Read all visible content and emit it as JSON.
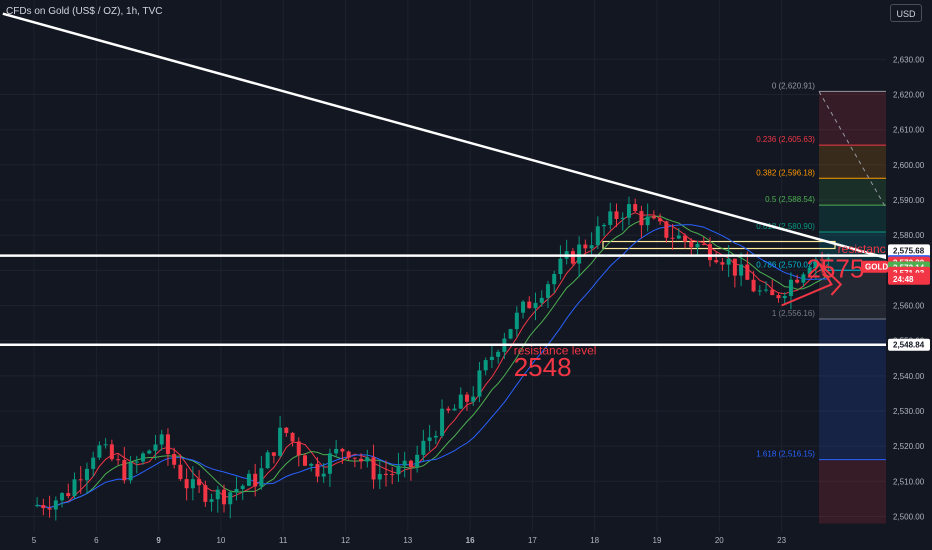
{
  "header": {
    "symbol_title": "CFDs on Gold (US$ / OZ), 1h, TVC",
    "currency_button": "USD"
  },
  "chart_data": {
    "type": "candlestick",
    "instrument": "CFDs on Gold (US$ / OZ)",
    "timeframe": "1h",
    "source": "TVC",
    "ylim": [
      2495,
      2640
    ],
    "y_ticks": [
      2500,
      2510,
      2520,
      2530,
      2540,
      2550,
      2560,
      2570,
      2580,
      2590,
      2600,
      2610,
      2620,
      2630
    ],
    "x_ticks": [
      "5",
      "6",
      "9",
      "10",
      "11",
      "12",
      "13",
      "16",
      "17",
      "18",
      "19",
      "20",
      "23"
    ],
    "x_ticks_bold": [
      "9",
      "16"
    ],
    "price_path": [
      [
        0.0,
        2503
      ],
      [
        0.5,
        2506
      ],
      [
        1.0,
        2520
      ],
      [
        1.5,
        2512
      ],
      [
        2.0,
        2522
      ],
      [
        2.5,
        2508
      ],
      [
        3.0,
        2506
      ],
      [
        3.6,
        2511
      ],
      [
        4.0,
        2525
      ],
      [
        4.5,
        2513
      ],
      [
        5.0,
        2520
      ],
      [
        5.5,
        2512
      ],
      [
        6.0,
        2513
      ],
      [
        6.5,
        2527
      ],
      [
        7.0,
        2534
      ],
      [
        7.5,
        2551
      ],
      [
        8.0,
        2562
      ],
      [
        8.5,
        2572
      ],
      [
        9.0,
        2580
      ],
      [
        9.5,
        2588
      ],
      [
        10.0,
        2582
      ],
      [
        10.5,
        2578
      ],
      [
        11.0,
        2575
      ],
      [
        11.5,
        2566
      ],
      [
        11.8,
        2561
      ],
      [
        12.2,
        2568
      ],
      [
        12.5,
        2574
      ],
      [
        12.8,
        2572
      ]
    ],
    "trend_line": {
      "from": [
        -0.5,
        2643
      ],
      "to": [
        14.4,
        2570
      ],
      "color": "#ffffff"
    },
    "horizontal_levels": [
      {
        "price": 2574.2,
        "color": "#ffffff"
      },
      {
        "price": 2548.84,
        "color": "#ffffff"
      }
    ],
    "fibonacci": {
      "x_range": [
        12.6,
        14.7
      ],
      "levels": [
        {
          "ratio": "0",
          "price": 2620.91,
          "label": "0 (2,620.91)",
          "color": "#9598a1"
        },
        {
          "ratio": "0.236",
          "price": 2605.63,
          "label": "0.236 (2,605.63)",
          "color": "#f23645"
        },
        {
          "ratio": "0.382",
          "price": 2596.18,
          "label": "0.382 (2,596.18)",
          "color": "#ff9800"
        },
        {
          "ratio": "0.5",
          "price": 2588.54,
          "label": "0.5 (2,588.54)",
          "color": "#4caf50"
        },
        {
          "ratio": "0.618",
          "price": 2580.9,
          "label": "0.618 (2,580.90)",
          "color": "#089981"
        },
        {
          "ratio": "0.786",
          "price": 2570.02,
          "label": "0.786 (2,570.02)",
          "color": "#00bcd4"
        },
        {
          "ratio": "1",
          "price": 2556.16,
          "label": "1 (2,556.16)",
          "color": "#787b86"
        },
        {
          "ratio": "1.618",
          "price": 2516.15,
          "label": "1.618 (2,516.15)",
          "color": "#2962ff"
        }
      ]
    },
    "annotations": [
      {
        "text": "resistance level",
        "x": 7.7,
        "price": 2546,
        "color": "#f23645",
        "size": "small"
      },
      {
        "text": "2548",
        "x": 7.7,
        "price": 2540,
        "color": "#f23645",
        "size": "large"
      },
      {
        "text": "resistance level",
        "x": 12.9,
        "price": 2575,
        "color": "#f23645",
        "size": "small"
      },
      {
        "text": "2575",
        "x": 12.4,
        "price": 2568,
        "color": "#f23645",
        "size": "large"
      }
    ],
    "price_badges": [
      {
        "text": "2,575.68",
        "price": 2575.68,
        "bg": "#ffffff",
        "fg": "#131722"
      },
      {
        "text": "2,572.63",
        "price": 2572.63,
        "bg": "#2962ff",
        "fg": "#ffffff"
      },
      {
        "text": "2,572.20",
        "price": 2572.2,
        "bg": "#f23645",
        "fg": "#ffffff"
      },
      {
        "text": "2,572.14",
        "price": 2570.8,
        "bg": "#4caf50",
        "fg": "#ffffff"
      },
      {
        "text": "2,571.03",
        "price": 2569.3,
        "bg": "#f23645",
        "fg": "#ffffff"
      },
      {
        "text": "24:48",
        "price": 2567.6,
        "bg": "#f23645",
        "fg": "#ffffff"
      },
      {
        "text": "2,548.84",
        "price": 2548.84,
        "bg": "#ffffff",
        "fg": "#131722"
      }
    ],
    "symbol_badge": {
      "text": "GOLD",
      "price": 2571.03,
      "bg": "#f23645",
      "fg": "#ffffff"
    },
    "colors": {
      "background": "#131722",
      "grid": "#1e222d",
      "up": "#089981",
      "down": "#f23645",
      "ma_fast": "#f23645",
      "ma_mid": "#4caf50",
      "ma_slow": "#2962ff"
    }
  }
}
